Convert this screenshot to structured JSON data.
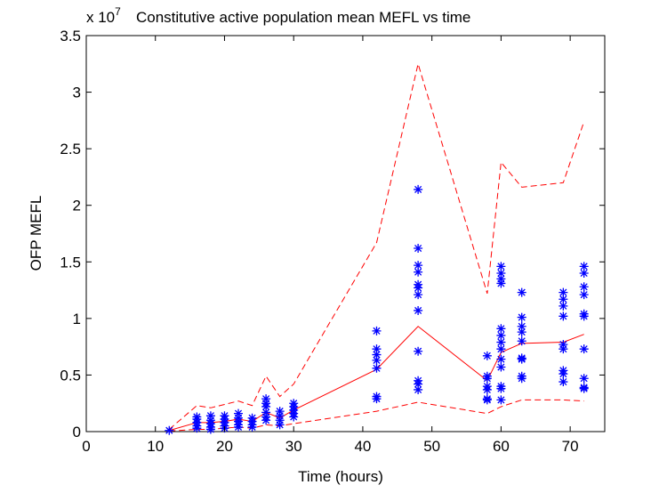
{
  "chart_data": {
    "type": "scatter",
    "title": "Constitutive active population mean MEFL vs time",
    "xlabel": "Time (hours)",
    "ylabel": "OFP MEFL",
    "exponent_base": "x 10",
    "exponent_power": "7",
    "xlim": [
      0,
      75
    ],
    "ylim": [
      0,
      3.5
    ],
    "xticks": [
      0,
      10,
      20,
      30,
      40,
      50,
      60,
      70
    ],
    "yticks": [
      0,
      0.5,
      1,
      1.5,
      2,
      2.5,
      3,
      3.5
    ],
    "ytick_labels": [
      "0",
      "0.5",
      "1",
      "1.5",
      "2",
      "2.5",
      "3",
      "3.5"
    ],
    "grid": false,
    "legend": "none",
    "colors": {
      "points": "#0000ff",
      "lines": "#ff0000"
    },
    "series": [
      {
        "kind": "scatter",
        "marker": "asterisk",
        "points": [
          [
            12,
            0.01
          ],
          [
            16,
            0.03
          ],
          [
            16,
            0.05
          ],
          [
            16,
            0.08
          ],
          [
            16,
            0.11
          ],
          [
            16,
            0.13
          ],
          [
            18,
            0.02
          ],
          [
            18,
            0.04
          ],
          [
            18,
            0.07
          ],
          [
            18,
            0.1
          ],
          [
            18,
            0.14
          ],
          [
            20,
            0.03
          ],
          [
            20,
            0.05
          ],
          [
            20,
            0.08
          ],
          [
            20,
            0.11
          ],
          [
            20,
            0.14
          ],
          [
            22,
            0.04
          ],
          [
            22,
            0.06
          ],
          [
            22,
            0.09
          ],
          [
            22,
            0.12
          ],
          [
            22,
            0.16
          ],
          [
            24,
            0.04
          ],
          [
            24,
            0.06
          ],
          [
            24,
            0.09
          ],
          [
            24,
            0.12
          ],
          [
            26,
            0.1
          ],
          [
            26,
            0.13
          ],
          [
            26,
            0.17
          ],
          [
            26,
            0.22
          ],
          [
            26,
            0.25
          ],
          [
            26,
            0.29
          ],
          [
            28,
            0.06
          ],
          [
            28,
            0.1
          ],
          [
            28,
            0.14
          ],
          [
            28,
            0.18
          ],
          [
            30,
            0.13
          ],
          [
            30,
            0.16
          ],
          [
            30,
            0.19
          ],
          [
            30,
            0.22
          ],
          [
            30,
            0.25
          ],
          [
            42,
            0.29
          ],
          [
            42,
            0.31
          ],
          [
            42,
            0.56
          ],
          [
            42,
            0.63
          ],
          [
            42,
            0.68
          ],
          [
            42,
            0.73
          ],
          [
            42,
            0.89
          ],
          [
            48,
            0.37
          ],
          [
            48,
            0.42
          ],
          [
            48,
            0.45
          ],
          [
            48,
            0.71
          ],
          [
            48,
            1.07
          ],
          [
            48,
            1.21
          ],
          [
            48,
            1.27
          ],
          [
            48,
            1.3
          ],
          [
            48,
            1.41
          ],
          [
            48,
            1.47
          ],
          [
            48,
            1.62
          ],
          [
            48,
            2.14
          ],
          [
            58,
            0.28
          ],
          [
            58,
            0.29
          ],
          [
            58,
            0.37
          ],
          [
            58,
            0.4
          ],
          [
            58,
            0.47
          ],
          [
            58,
            0.49
          ],
          [
            58,
            0.67
          ],
          [
            60,
            0.28
          ],
          [
            60,
            0.38
          ],
          [
            60,
            0.4
          ],
          [
            60,
            0.57
          ],
          [
            60,
            0.64
          ],
          [
            60,
            0.73
          ],
          [
            60,
            0.79
          ],
          [
            60,
            0.85
          ],
          [
            60,
            0.91
          ],
          [
            60,
            1.31
          ],
          [
            60,
            1.35
          ],
          [
            60,
            1.4
          ],
          [
            60,
            1.46
          ],
          [
            63,
            0.47
          ],
          [
            63,
            0.49
          ],
          [
            63,
            0.64
          ],
          [
            63,
            0.65
          ],
          [
            63,
            0.8
          ],
          [
            63,
            0.88
          ],
          [
            63,
            0.93
          ],
          [
            63,
            1.01
          ],
          [
            63,
            1.23
          ],
          [
            69,
            0.44
          ],
          [
            69,
            0.51
          ],
          [
            69,
            0.54
          ],
          [
            69,
            0.73
          ],
          [
            69,
            0.77
          ],
          [
            69,
            1.02
          ],
          [
            69,
            1.11
          ],
          [
            69,
            1.17
          ],
          [
            69,
            1.23
          ],
          [
            72,
            0.38
          ],
          [
            72,
            0.39
          ],
          [
            72,
            0.47
          ],
          [
            72,
            0.73
          ],
          [
            72,
            1.02
          ],
          [
            72,
            1.04
          ],
          [
            72,
            1.21
          ],
          [
            72,
            1.28
          ],
          [
            72,
            1.4
          ],
          [
            72,
            1.46
          ]
        ]
      },
      {
        "kind": "line",
        "style": "solid",
        "x": [
          12,
          16,
          18,
          20,
          22,
          24,
          26,
          28,
          30,
          42,
          48,
          58,
          60,
          63,
          69,
          72
        ],
        "y": [
          0.01,
          0.08,
          0.08,
          0.09,
          0.11,
          0.09,
          0.17,
          0.12,
          0.19,
          0.55,
          0.93,
          0.45,
          0.7,
          0.78,
          0.79,
          0.86
        ]
      },
      {
        "kind": "line",
        "style": "dashed",
        "x": [
          12,
          16,
          18,
          20,
          22,
          24,
          26,
          28,
          30,
          42,
          48,
          58,
          60,
          63,
          69,
          72
        ],
        "y": [
          0.02,
          0.23,
          0.21,
          0.24,
          0.27,
          0.23,
          0.49,
          0.31,
          0.42,
          1.67,
          3.25,
          1.22,
          2.38,
          2.16,
          2.2,
          2.74
        ]
      },
      {
        "kind": "line",
        "style": "dashed",
        "x": [
          12,
          16,
          18,
          20,
          22,
          24,
          26,
          28,
          30,
          42,
          48,
          58,
          60,
          63,
          69,
          72
        ],
        "y": [
          0.005,
          0.02,
          0.02,
          0.03,
          0.04,
          0.03,
          0.06,
          0.05,
          0.07,
          0.18,
          0.26,
          0.16,
          0.22,
          0.28,
          0.28,
          0.27
        ]
      }
    ]
  }
}
